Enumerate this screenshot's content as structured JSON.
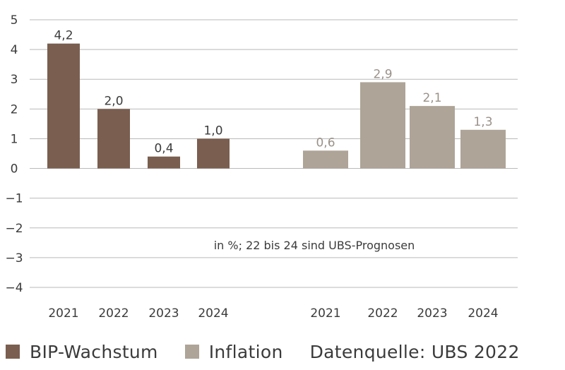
{
  "chart_data": {
    "type": "bar",
    "ylim": [
      -4,
      5
    ],
    "yticks": [
      "5",
      "4",
      "3",
      "2",
      "1",
      "0",
      "−1",
      "−2",
      "−3",
      "−4"
    ],
    "ytick_values": [
      5,
      4,
      3,
      2,
      1,
      0,
      -1,
      -2,
      -3,
      -4
    ],
    "groups": [
      {
        "name": "BIP-Wachstum",
        "color": "#7a5e4f",
        "categories": [
          "2021",
          "2022",
          "2023",
          "2024"
        ],
        "values": [
          4.2,
          2.0,
          0.4,
          1.0
        ],
        "labels": [
          "4,2",
          "2,0",
          "0,4",
          "1,0"
        ]
      },
      {
        "name": "Inflation",
        "color": "#aea497",
        "categories": [
          "2021",
          "2022",
          "2023",
          "2024"
        ],
        "values": [
          0.6,
          2.9,
          2.1,
          1.3
        ],
        "labels": [
          "0,6",
          "2,9",
          "2,1",
          "1,3"
        ]
      }
    ],
    "annotation": "in %; 22 bis 24 sind UBS-Prognosen",
    "grid": true
  },
  "legend": {
    "items": [
      {
        "label": "BIP-Wachstum",
        "color": "#7a5e4f"
      },
      {
        "label": "Inflation",
        "color": "#aea497"
      }
    ],
    "source": "Datenquelle: UBS 2022"
  }
}
